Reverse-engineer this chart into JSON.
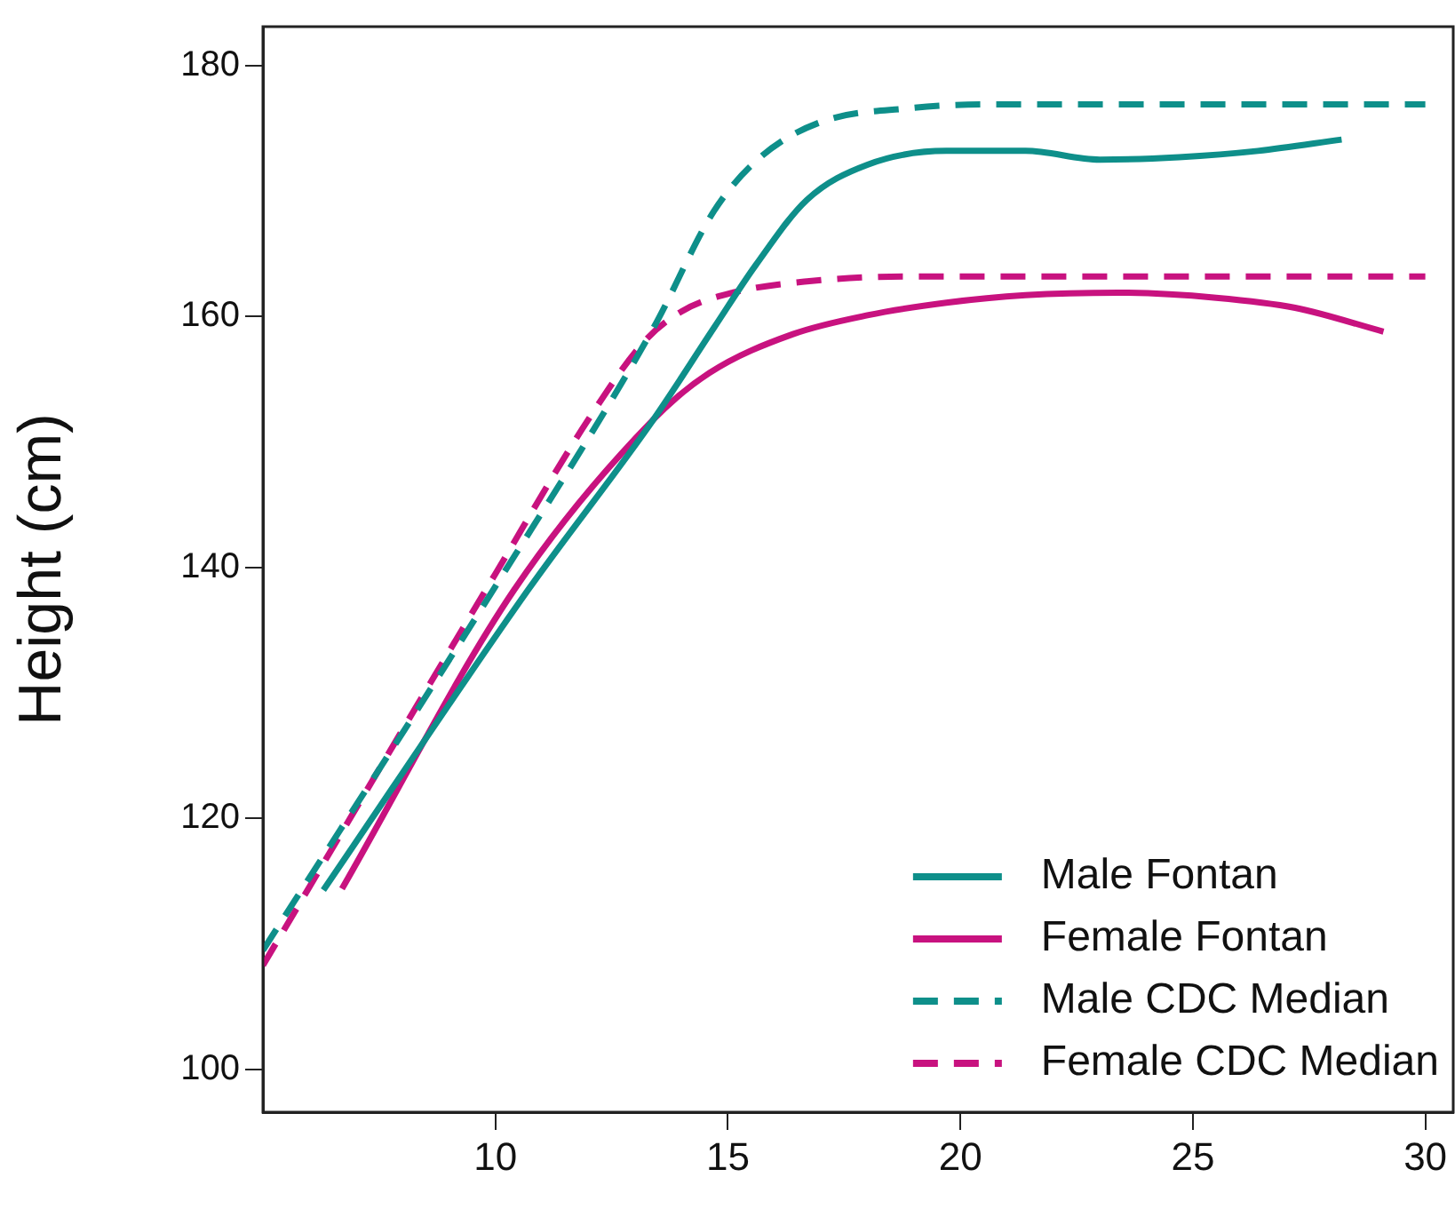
{
  "chart_data": {
    "type": "line",
    "ylabel": "Height (cm)",
    "xlim": [
      5,
      30.6
    ],
    "ylim": [
      96.6,
      183.1
    ],
    "xticks": [
      10,
      15,
      20,
      25,
      30
    ],
    "yticks": [
      100,
      120,
      140,
      160,
      180
    ],
    "grid": false,
    "legend": "bottom right",
    "series": [
      {
        "name": "Male Fontan",
        "color": "#0e8f8a",
        "line_style": "solid",
        "x": [
          6.3,
          10.7,
          13.4,
          14.7,
          15.6,
          16.7,
          18.0,
          19.7,
          21.4,
          23.0,
          24.7,
          26.4,
          28.2
        ],
        "values": [
          114.3,
          138.2,
          151.8,
          159.1,
          164.1,
          169.3,
          172.1,
          173.2,
          173.2,
          172.5,
          172.7,
          173.2,
          174.1
        ]
      },
      {
        "name": "Female Fontan",
        "color": "#c8127f",
        "line_style": "solid",
        "x": [
          6.7,
          10.4,
          13.4,
          14.6,
          16.4,
          18.0,
          19.7,
          21.4,
          23.4,
          25.5,
          27.2,
          29.1
        ],
        "values": [
          114.4,
          138.2,
          151.8,
          155.5,
          158.6,
          160.1,
          161.1,
          161.7,
          161.9,
          161.5,
          160.7,
          158.8
        ]
      },
      {
        "name": "Male CDC Median",
        "color": "#0e8f8a",
        "line_style": "dashed",
        "x": [
          5,
          10.0,
          13.4,
          14.7,
          15.7,
          17.0,
          18.9,
          20.5,
          30.0
        ],
        "values": [
          109.5,
          138.5,
          159.1,
          168.4,
          172.7,
          175.5,
          176.6,
          176.9,
          176.9
        ]
      },
      {
        "name": "Female CDC Median",
        "color": "#c8127f",
        "line_style": "dashed",
        "x": [
          5,
          10.0,
          12.0,
          13.2,
          14.0,
          15.1,
          16.7,
          18.9,
          30.0
        ],
        "values": [
          108.3,
          139.5,
          151.8,
          158.0,
          160.4,
          161.9,
          162.8,
          163.2,
          163.2
        ]
      }
    ]
  }
}
